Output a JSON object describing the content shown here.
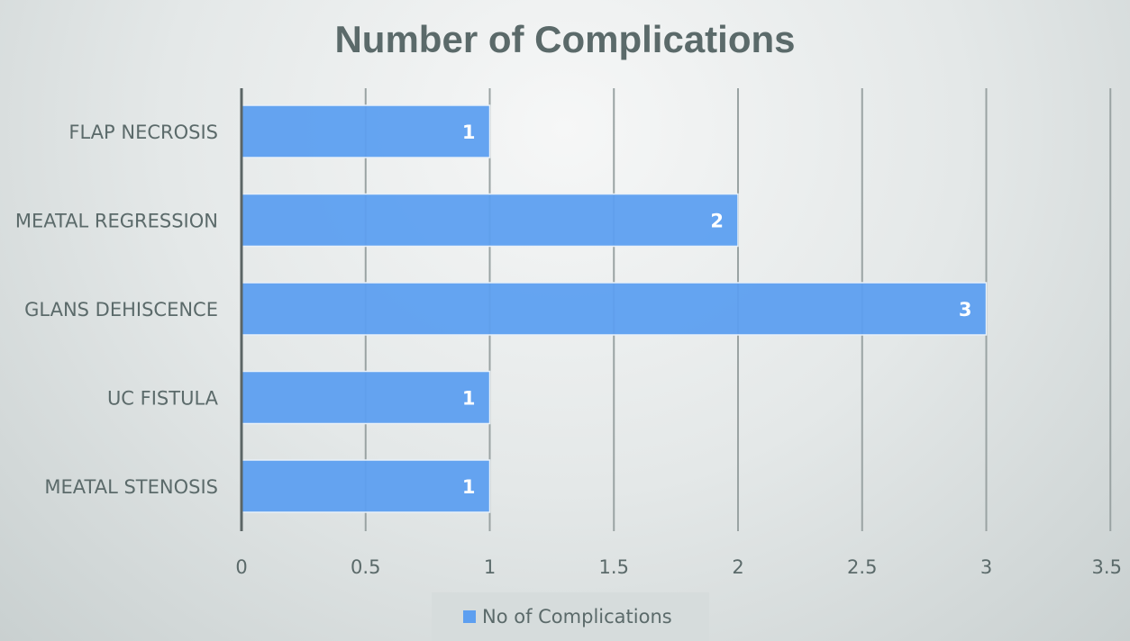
{
  "chart_data": {
    "type": "bar",
    "orientation": "horizontal",
    "title": "Number of Complications",
    "categories": [
      "FLAP NECROSIS",
      "MEATAL REGRESSION",
      "GLANS DEHISCENCE",
      "UC FISTULA",
      "MEATAL STENOSIS"
    ],
    "series": [
      {
        "name": "No of Complications",
        "values": [
          1,
          2,
          3,
          1,
          1
        ],
        "color": "#5d9ff0"
      }
    ],
    "data_labels": [
      "1",
      "2",
      "3",
      "1",
      "1"
    ],
    "xlim": [
      0,
      3.5
    ],
    "xticks": [
      "0",
      "0.5",
      "1",
      "1.5",
      "2",
      "2.5",
      "3",
      "3.5"
    ],
    "grid": true,
    "legend_position": "bottom"
  }
}
